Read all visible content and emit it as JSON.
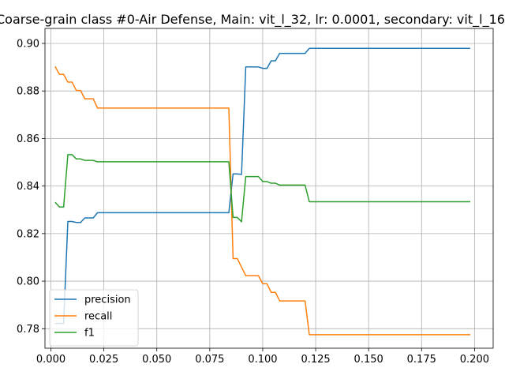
{
  "chart_data": {
    "type": "line",
    "title": "Coarse-grain class #0-Air Defense, Main: vit_l_32, lr: 0.0001, secondary: vit_l_16,",
    "xlabel": "",
    "ylabel": "",
    "xlim": [
      -0.0028,
      0.2088
    ],
    "ylim": [
      0.7718,
      0.9063
    ],
    "xticks": [
      0.0,
      0.025,
      0.05,
      0.075,
      0.1,
      0.125,
      0.15,
      0.175,
      0.2
    ],
    "xtick_labels": [
      "0.000",
      "0.025",
      "0.050",
      "0.075",
      "0.100",
      "0.125",
      "0.150",
      "0.175",
      "0.200"
    ],
    "yticks": [
      0.78,
      0.8,
      0.82,
      0.84,
      0.86,
      0.88,
      0.9
    ],
    "ytick_labels": [
      "0.78",
      "0.80",
      "0.82",
      "0.84",
      "0.86",
      "0.88",
      "0.90"
    ],
    "grid": true,
    "legend_position": "lower-left",
    "series": [
      {
        "name": "precision",
        "color": "#1f77b4",
        "x": [
          0.002,
          0.004,
          0.006,
          0.008,
          0.01,
          0.012,
          0.014,
          0.016,
          0.018,
          0.02,
          0.022,
          0.025,
          0.05,
          0.075,
          0.084,
          0.086,
          0.088,
          0.09,
          0.092,
          0.094,
          0.096,
          0.098,
          0.1,
          0.102,
          0.104,
          0.106,
          0.108,
          0.11,
          0.112,
          0.114,
          0.116,
          0.118,
          0.12,
          0.122,
          0.124,
          0.15,
          0.175,
          0.198
        ],
        "y": [
          0.7822,
          0.7822,
          0.7822,
          0.8251,
          0.8251,
          0.8247,
          0.8247,
          0.8266,
          0.8266,
          0.8266,
          0.8288,
          0.8288,
          0.8288,
          0.8288,
          0.8288,
          0.8451,
          0.8451,
          0.8449,
          0.8901,
          0.8901,
          0.8901,
          0.8901,
          0.8895,
          0.8895,
          0.8927,
          0.8927,
          0.8958,
          0.8958,
          0.8958,
          0.8958,
          0.8958,
          0.8958,
          0.8958,
          0.8979,
          0.8979,
          0.8979,
          0.8979,
          0.8979
        ]
      },
      {
        "name": "recall",
        "color": "#ff7f0e",
        "x": [
          0.002,
          0.004,
          0.006,
          0.008,
          0.01,
          0.012,
          0.014,
          0.016,
          0.018,
          0.02,
          0.022,
          0.025,
          0.05,
          0.075,
          0.084,
          0.086,
          0.088,
          0.09,
          0.092,
          0.094,
          0.096,
          0.098,
          0.1,
          0.102,
          0.104,
          0.106,
          0.108,
          0.11,
          0.112,
          0.114,
          0.116,
          0.118,
          0.12,
          0.122,
          0.124,
          0.15,
          0.175,
          0.198
        ],
        "y": [
          0.8903,
          0.887,
          0.887,
          0.8837,
          0.8837,
          0.8802,
          0.8802,
          0.8767,
          0.8767,
          0.8767,
          0.8728,
          0.8728,
          0.8728,
          0.8728,
          0.8728,
          0.8095,
          0.8095,
          0.8059,
          0.8023,
          0.8023,
          0.8023,
          0.8023,
          0.7989,
          0.7989,
          0.7953,
          0.7953,
          0.7917,
          0.7917,
          0.7917,
          0.7917,
          0.7917,
          0.7917,
          0.7917,
          0.7775,
          0.7775,
          0.7775,
          0.7775,
          0.7775
        ]
      },
      {
        "name": "f1",
        "color": "#2ca02c",
        "x": [
          0.002,
          0.004,
          0.006,
          0.008,
          0.01,
          0.012,
          0.014,
          0.016,
          0.018,
          0.02,
          0.022,
          0.025,
          0.05,
          0.075,
          0.084,
          0.086,
          0.088,
          0.09,
          0.092,
          0.094,
          0.096,
          0.098,
          0.1,
          0.102,
          0.104,
          0.106,
          0.108,
          0.11,
          0.112,
          0.114,
          0.116,
          0.118,
          0.12,
          0.122,
          0.124,
          0.15,
          0.175,
          0.198
        ],
        "y": [
          0.8332,
          0.8312,
          0.8312,
          0.8532,
          0.8532,
          0.8514,
          0.8514,
          0.8508,
          0.8508,
          0.8508,
          0.8502,
          0.8502,
          0.8502,
          0.8502,
          0.8502,
          0.8268,
          0.8268,
          0.825,
          0.844,
          0.844,
          0.844,
          0.844,
          0.8419,
          0.8419,
          0.8412,
          0.8412,
          0.8404,
          0.8404,
          0.8404,
          0.8404,
          0.8404,
          0.8404,
          0.8404,
          0.8334,
          0.8334,
          0.8334,
          0.8334,
          0.8334
        ]
      }
    ]
  }
}
